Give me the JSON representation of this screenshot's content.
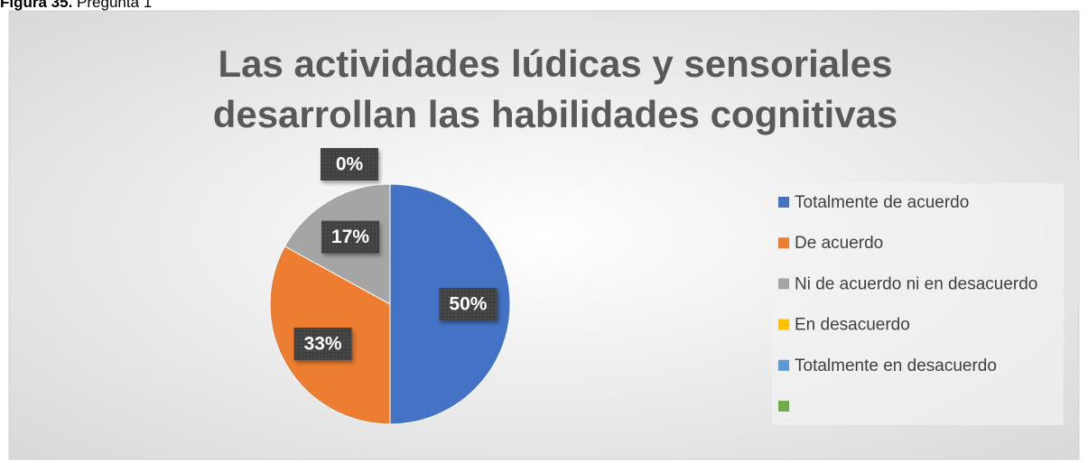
{
  "caption": {
    "label": "Figura 35.",
    "text": "Pregunta 1"
  },
  "chart_data": {
    "type": "pie",
    "title": [
      "Las actividades lúdicas y sensoriales",
      "desarrollan las habilidades cognitivas"
    ],
    "categories": [
      "Totalmente de acuerdo",
      "De acuerdo",
      "Ni de acuerdo ni en desacuerdo",
      "En desacuerdo",
      "Totalmente en desacuerdo",
      null
    ],
    "values": [
      50,
      33,
      17,
      0,
      0,
      0
    ],
    "value_labels": [
      "50%",
      "33%",
      "17%",
      "0%",
      null,
      null
    ],
    "colors": [
      "#4472c4",
      "#ed7d31",
      "#a5a5a5",
      "#ffc000",
      "#5b9bd5",
      "#70ad47"
    ],
    "legend": "right"
  }
}
